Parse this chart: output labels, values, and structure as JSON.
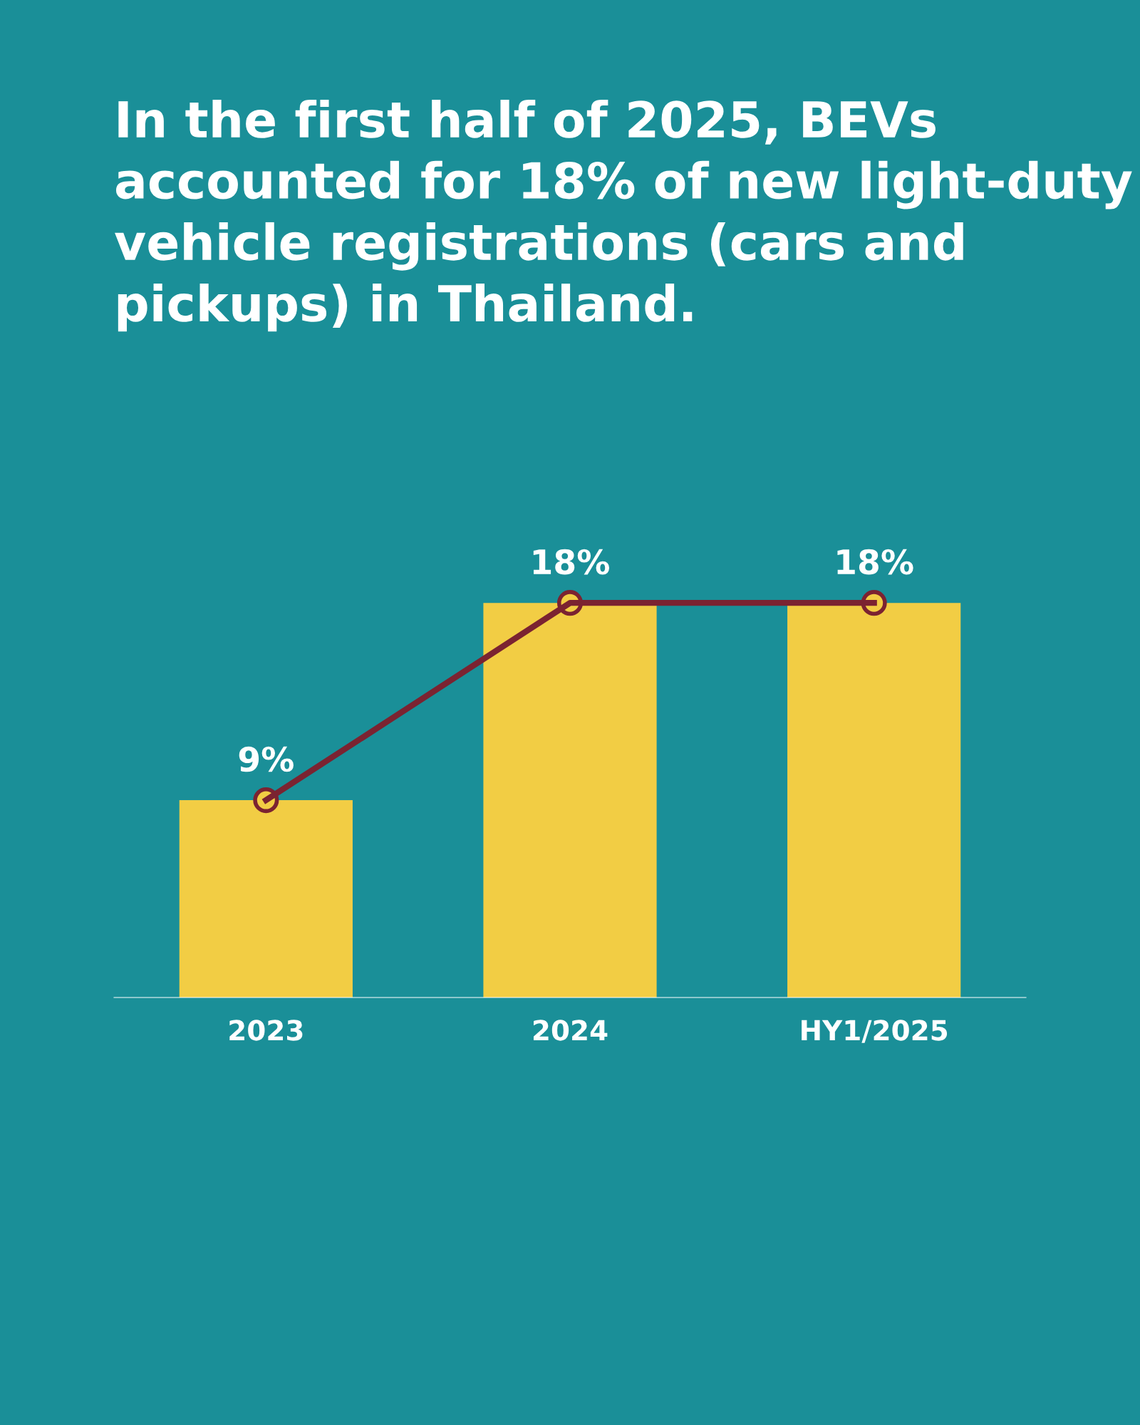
{
  "chart_data": {
    "type": "bar",
    "title": "In the first half of 2025, BEVs accounted for 18% of new light-duty vehicle registrations (cars and pickups) in Thailand.",
    "categories": [
      "2023",
      "2024",
      "HY1/2025"
    ],
    "series": [
      {
        "color": "#f2cd44",
        "values": [
          9,
          18,
          18
        ],
        "value_labels": [
          "9%",
          "18%",
          "18%"
        ]
      },
      {
        "type": "line",
        "color": "#7b2331",
        "values": [
          9,
          18,
          18
        ],
        "marker": "circle"
      }
    ],
    "grid": false,
    "legend": false
  }
}
